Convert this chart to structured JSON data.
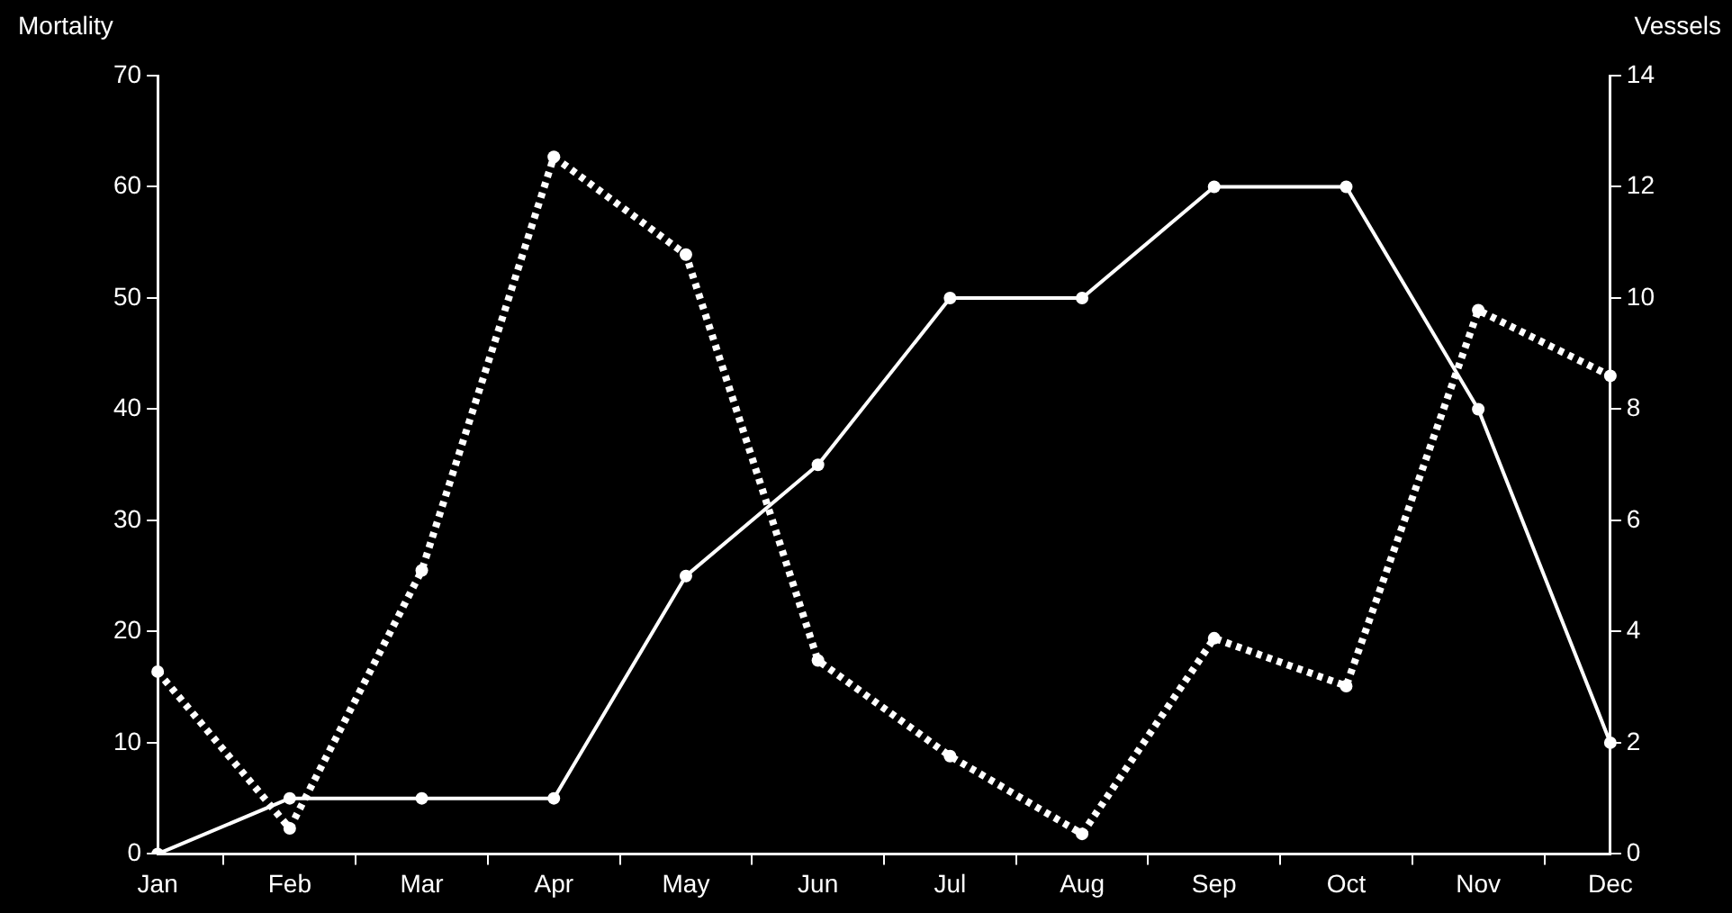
{
  "chart_data": {
    "type": "line",
    "ylabel": "Mortality",
    "y2label": "Vessels",
    "categories": [
      "Jan",
      "Feb",
      "Mar",
      "Apr",
      "May",
      "Jun",
      "Jul",
      "Aug",
      "Sep",
      "Oct",
      "Nov",
      "Dec"
    ],
    "series": [
      {
        "color": "#ffffff",
        "line_style": "dotted",
        "axis": "y",
        "values": [
          16.4,
          2.3,
          25.5,
          62.7,
          53.9,
          17.4,
          8.8,
          1.8,
          19.4,
          15.1,
          48.9,
          43
        ]
      },
      {
        "color": "#ffffff",
        "line_style": "solid",
        "axis": "y2",
        "values": [
          0,
          1,
          1,
          1,
          5,
          7,
          10,
          10,
          12,
          12,
          8,
          2
        ]
      }
    ],
    "ylim": [
      0,
      70
    ],
    "yticks": [
      0,
      10,
      20,
      30,
      40,
      50,
      60,
      70
    ],
    "y2lim": [
      0,
      14
    ],
    "y2ticks": [
      0,
      2,
      4,
      6,
      8,
      10,
      12,
      14
    ],
    "marker": "circle",
    "grid": false,
    "legend": false
  }
}
